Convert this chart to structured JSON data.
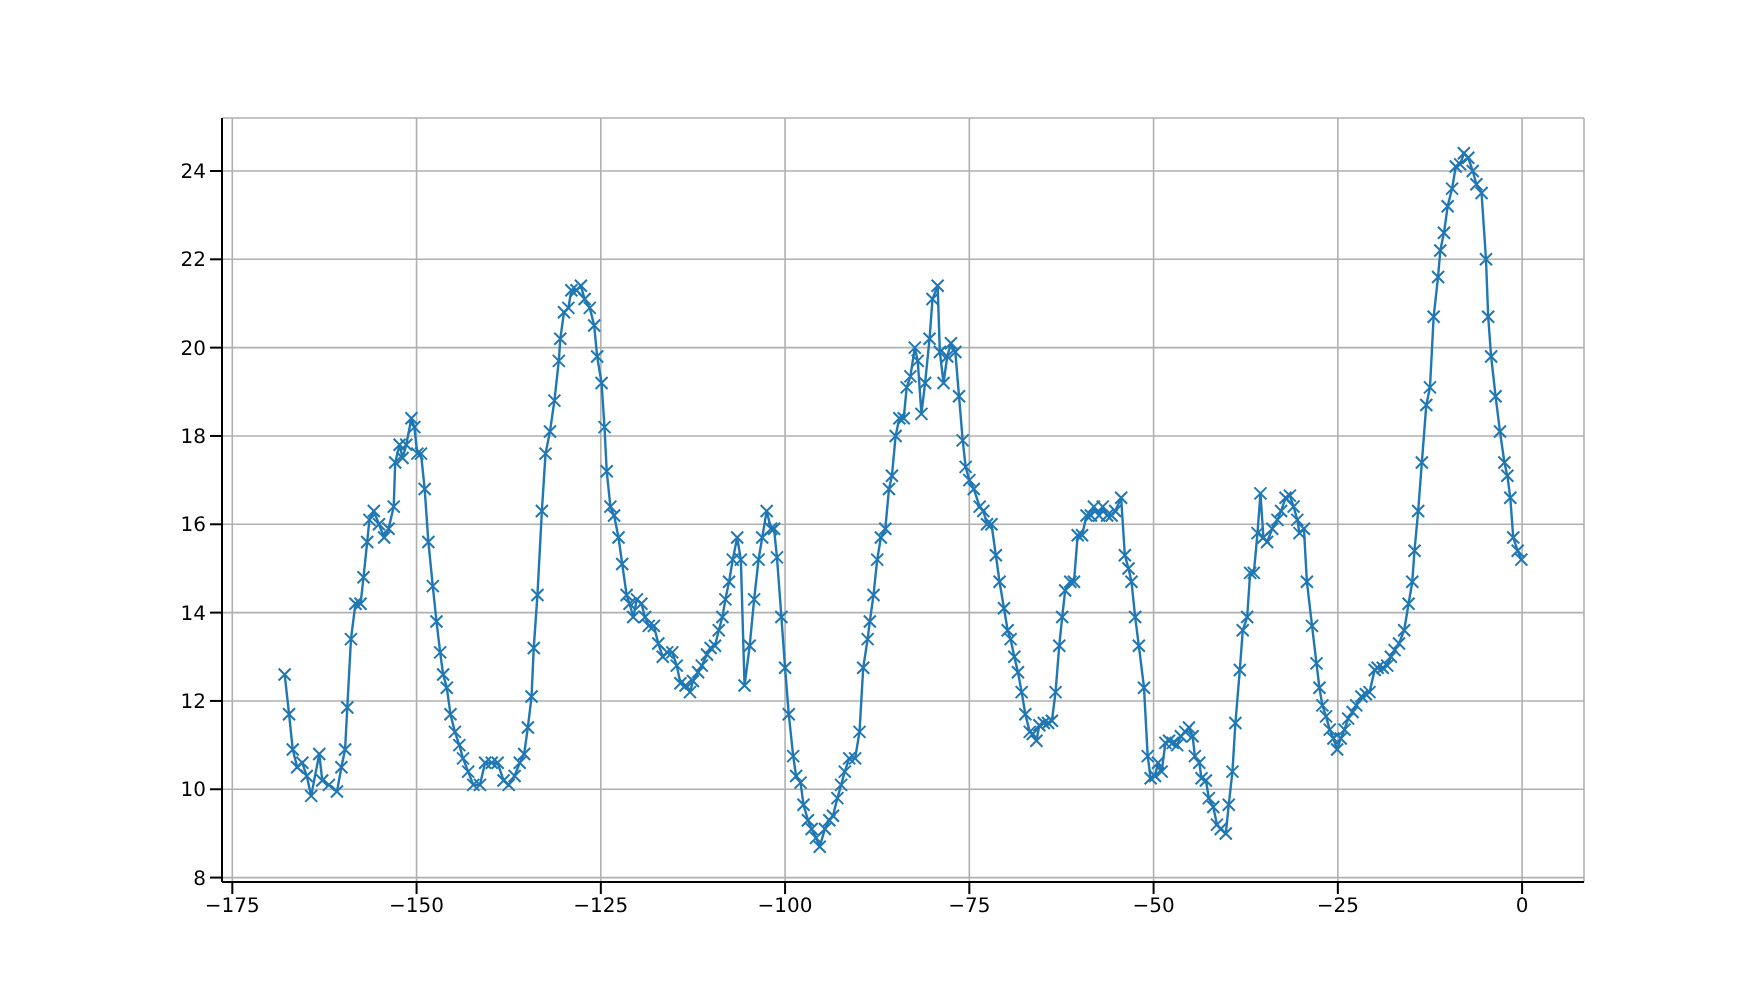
{
  "chart_data": {
    "type": "line",
    "x": [
      -167.9,
      -167.3,
      -166.8,
      -166.2,
      -165.5,
      -164.9,
      -164.3,
      -163.2,
      -162.8,
      -161.9,
      -160.8,
      -160.2,
      -159.7,
      -159.4,
      -158.9,
      -158.3,
      -157.6,
      -157.2,
      -156.7,
      -156.4,
      -155.8,
      -155.1,
      -154.4,
      -153.8,
      -153.1,
      -152.9,
      -152.3,
      -151.9,
      -151.4,
      -150.7,
      -150.3,
      -149.9,
      -149.4,
      -148.9,
      -148.4,
      -147.8,
      -147.3,
      -146.8,
      -146.4,
      -145.9,
      -145.4,
      -144.8,
      -144.2,
      -143.7,
      -143.0,
      -142.3,
      -141.4,
      -140.7,
      -139.8,
      -139.0,
      -138.2,
      -137.5,
      -136.7,
      -136.0,
      -135.4,
      -134.9,
      -134.4,
      -134.1,
      -133.6,
      -133.0,
      -132.5,
      -131.9,
      -131.3,
      -130.7,
      -130.5,
      -130.0,
      -129.4,
      -129.0,
      -128.3,
      -127.7,
      -127.2,
      -126.5,
      -125.9,
      -125.5,
      -124.9,
      -124.5,
      -124.2,
      -123.7,
      -123.2,
      -122.6,
      -122.1,
      -121.5,
      -121.1,
      -120.6,
      -120.1,
      -119.5,
      -119.0,
      -118.5,
      -117.8,
      -117.2,
      -116.6,
      -116.0,
      -115.3,
      -114.7,
      -114.2,
      -113.5,
      -112.9,
      -112.5,
      -111.8,
      -111.3,
      -110.6,
      -110.1,
      -109.5,
      -109.0,
      -108.5,
      -108.1,
      -107.6,
      -107.1,
      -106.5,
      -106.0,
      -105.5,
      -104.8,
      -104.2,
      -103.6,
      -103.1,
      -102.5,
      -101.9,
      -101.5,
      -101.1,
      -100.5,
      -100.0,
      -99.5,
      -98.9,
      -98.5,
      -97.9,
      -97.5,
      -96.9,
      -96.4,
      -95.8,
      -95.3,
      -94.6,
      -94.0,
      -93.5,
      -92.9,
      -92.4,
      -91.9,
      -91.3,
      -90.5,
      -89.9,
      -89.4,
      -88.8,
      -88.5,
      -88.0,
      -87.5,
      -87.0,
      -86.4,
      -85.9,
      -85.5,
      -85.0,
      -84.5,
      -83.9,
      -83.5,
      -83.0,
      -82.4,
      -82.0,
      -81.5,
      -81.0,
      -80.4,
      -80.0,
      -79.3,
      -79.0,
      -78.5,
      -78.0,
      -77.5,
      -76.9,
      -76.4,
      -75.9,
      -75.5,
      -75.0,
      -74.4,
      -73.6,
      -73.1,
      -72.6,
      -72.0,
      -71.4,
      -70.9,
      -70.3,
      -69.8,
      -69.4,
      -68.9,
      -68.4,
      -67.9,
      -67.4,
      -66.8,
      -66.4,
      -65.9,
      -65.5,
      -64.9,
      -64.3,
      -63.8,
      -63.3,
      -62.8,
      -62.4,
      -62.0,
      -61.3,
      -60.8,
      -60.3,
      -59.7,
      -59.1,
      -58.5,
      -58.1,
      -57.4,
      -56.9,
      -56.3,
      -55.7,
      -55.2,
      -54.4,
      -53.9,
      -53.4,
      -53.0,
      -52.5,
      -52.0,
      -51.3,
      -50.8,
      -50.4,
      -49.8,
      -49.4,
      -48.9,
      -48.4,
      -47.9,
      -47.4,
      -46.8,
      -46.3,
      -45.7,
      -45.2,
      -44.7,
      -44.4,
      -43.8,
      -43.5,
      -42.9,
      -42.5,
      -41.9,
      -41.4,
      -40.9,
      -40.2,
      -39.8,
      -39.3,
      -38.9,
      -38.3,
      -37.9,
      -37.3,
      -36.9,
      -36.4,
      -35.9,
      -35.5,
      -35.1,
      -34.6,
      -33.9,
      -33.2,
      -32.7,
      -32.1,
      -31.5,
      -31.0,
      -30.5,
      -30.2,
      -29.6,
      -29.2,
      -28.5,
      -27.9,
      -27.5,
      -27.1,
      -26.6,
      -26.1,
      -25.6,
      -25.1,
      -24.6,
      -24.1,
      -23.6,
      -23.0,
      -22.5,
      -21.8,
      -21.2,
      -20.7,
      -20.0,
      -19.6,
      -18.9,
      -18.3,
      -17.8,
      -17.3,
      -16.7,
      -16.0,
      -15.4,
      -14.9,
      -14.6,
      -14.1,
      -13.6,
      -13.0,
      -12.5,
      -12.0,
      -11.4,
      -11.1,
      -10.6,
      -10.1,
      -9.5,
      -9.0,
      -8.4,
      -7.9,
      -7.3,
      -6.7,
      -6.2,
      -5.5,
      -4.9,
      -4.6,
      -4.2,
      -3.6,
      -3.0,
      -2.4,
      -2.0,
      -1.6,
      -1.2,
      -0.6,
      -0.1
    ],
    "values": [
      12.6,
      11.7,
      10.9,
      10.5,
      10.6,
      10.3,
      9.85,
      10.8,
      10.2,
      10.1,
      9.95,
      10.5,
      10.9,
      11.85,
      13.4,
      14.2,
      14.2,
      14.8,
      15.6,
      16.1,
      16.3,
      16.0,
      15.7,
      15.9,
      16.4,
      17.4,
      17.8,
      17.5,
      17.8,
      18.4,
      18.2,
      17.6,
      17.6,
      16.8,
      15.6,
      14.6,
      13.8,
      13.1,
      12.6,
      12.3,
      11.7,
      11.3,
      11.0,
      10.7,
      10.4,
      10.1,
      10.1,
      10.6,
      10.6,
      10.6,
      10.2,
      10.1,
      10.3,
      10.6,
      10.8,
      11.4,
      12.1,
      13.2,
      14.4,
      16.3,
      17.6,
      18.1,
      18.8,
      19.7,
      20.2,
      20.8,
      20.9,
      21.3,
      21.3,
      21.4,
      21.1,
      20.9,
      20.5,
      19.8,
      19.2,
      18.2,
      17.2,
      16.4,
      16.2,
      15.7,
      15.1,
      14.4,
      14.2,
      13.9,
      14.3,
      14.2,
      13.9,
      13.7,
      13.7,
      13.3,
      13.0,
      13.1,
      13.1,
      12.8,
      12.4,
      12.35,
      12.2,
      12.45,
      12.65,
      12.8,
      13.05,
      13.2,
      13.25,
      13.6,
      13.9,
      14.3,
      14.7,
      15.2,
      15.7,
      15.2,
      12.35,
      13.25,
      14.3,
      15.2,
      15.7,
      16.3,
      15.9,
      15.9,
      15.25,
      13.9,
      12.75,
      11.7,
      10.75,
      10.3,
      10.15,
      9.65,
      9.3,
      9.1,
      8.9,
      8.7,
      9.1,
      9.3,
      9.4,
      9.8,
      10.1,
      10.4,
      10.7,
      10.7,
      11.3,
      12.75,
      13.4,
      13.8,
      14.4,
      15.2,
      15.7,
      15.9,
      16.8,
      17.1,
      18.0,
      18.4,
      18.4,
      19.1,
      19.35,
      20.0,
      19.7,
      18.5,
      19.2,
      20.2,
      21.1,
      21.4,
      19.9,
      19.2,
      19.8,
      20.1,
      19.9,
      18.9,
      17.9,
      17.3,
      17.0,
      16.8,
      16.4,
      16.3,
      16.0,
      16.0,
      15.3,
      14.7,
      14.1,
      13.6,
      13.4,
      13.0,
      12.65,
      12.2,
      11.7,
      11.3,
      11.25,
      11.1,
      11.45,
      11.5,
      11.5,
      11.55,
      12.2,
      13.25,
      13.9,
      14.5,
      14.7,
      14.7,
      15.75,
      15.75,
      16.2,
      16.2,
      16.4,
      16.2,
      16.4,
      16.2,
      16.2,
      16.3,
      16.6,
      15.3,
      15.0,
      14.7,
      13.9,
      13.25,
      12.3,
      10.75,
      10.25,
      10.3,
      10.6,
      10.4,
      11.05,
      11.1,
      11.05,
      11.0,
      11.2,
      11.3,
      11.4,
      11.2,
      10.75,
      10.6,
      10.25,
      10.2,
      9.8,
      9.6,
      9.2,
      9.1,
      9.0,
      9.65,
      10.4,
      11.5,
      12.7,
      13.6,
      13.9,
      14.9,
      14.9,
      15.8,
      16.7,
      15.7,
      15.6,
      15.9,
      16.1,
      16.3,
      16.6,
      16.65,
      16.4,
      16.1,
      15.8,
      15.9,
      14.7,
      13.7,
      12.85,
      12.3,
      11.9,
      11.65,
      11.35,
      11.15,
      10.9,
      11.15,
      11.35,
      11.6,
      11.75,
      11.9,
      12.1,
      12.15,
      12.2,
      12.7,
      12.75,
      12.75,
      12.8,
      13.0,
      13.15,
      13.3,
      13.6,
      14.2,
      14.7,
      15.4,
      16.3,
      17.4,
      18.7,
      19.1,
      20.7,
      21.6,
      22.2,
      22.6,
      23.2,
      23.6,
      24.1,
      24.15,
      24.4,
      24.3,
      24.0,
      23.7,
      23.5,
      22.0,
      20.7,
      19.8,
      18.9,
      18.1,
      17.4,
      17.1,
      16.6,
      15.7,
      15.4,
      15.2
    ],
    "color": "#1f77b4",
    "xlim": [
      -176.4,
      8.4
    ],
    "xticks": [
      -175,
      -150,
      -125,
      -100,
      -75,
      -50,
      -25,
      0
    ],
    "ylim": [
      7.9,
      25.2
    ],
    "yticks": [
      8,
      10,
      12,
      14,
      16,
      18,
      20,
      22,
      24
    ],
    "grid": true,
    "marker": "cross",
    "line_style": "solid"
  }
}
